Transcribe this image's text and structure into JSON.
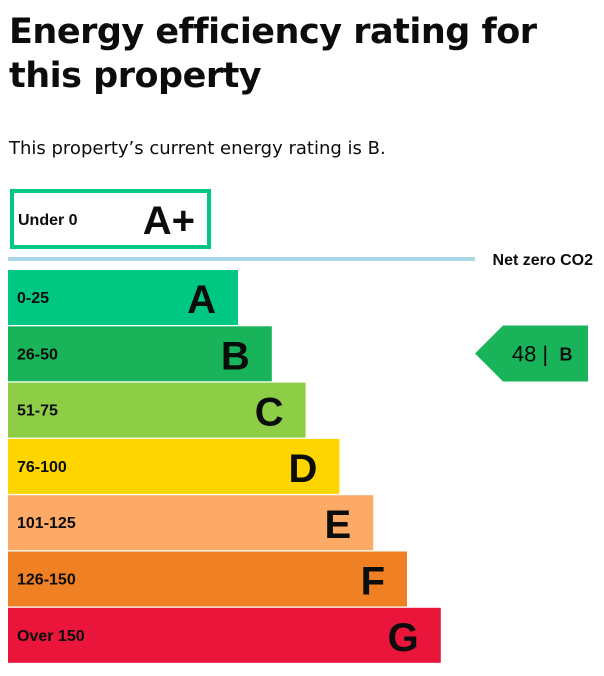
{
  "page": {
    "title": "Energy efficiency rating for this property",
    "intro": "This property’s current energy rating is B."
  },
  "chart_data": {
    "type": "bar",
    "bands": [
      {
        "letter": "A+",
        "range": "Under 0",
        "color": "#00c781"
      },
      {
        "letter": "A",
        "range": "0-25",
        "color": "#00c781"
      },
      {
        "letter": "B",
        "range": "26-50",
        "color": "#19b459"
      },
      {
        "letter": "C",
        "range": "51-75",
        "color": "#8dce46"
      },
      {
        "letter": "D",
        "range": "76-100",
        "color": "#ffd500"
      },
      {
        "letter": "E",
        "range": "101-125",
        "color": "#fcaa65"
      },
      {
        "letter": "F",
        "range": "126-150",
        "color": "#ef8023"
      },
      {
        "letter": "G",
        "range": "Over 150",
        "color": "#e9153b"
      }
    ],
    "net_zero": {
      "label": "Net zero CO2",
      "line_color": "#a8d8e3"
    },
    "current": {
      "score": "48",
      "separator": "|",
      "letter": "B",
      "color": "#19b459"
    }
  }
}
